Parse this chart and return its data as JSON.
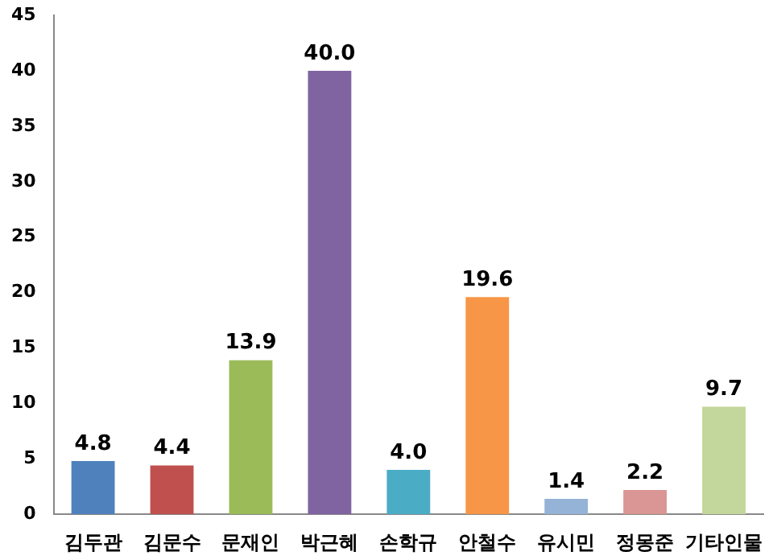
{
  "chart_data": {
    "type": "bar",
    "categories": [
      "김두관",
      "김문수",
      "문재인",
      "박근혜",
      "손학규",
      "안철수",
      "유시민",
      "정몽준",
      "기타인물"
    ],
    "values": [
      4.8,
      4.4,
      13.9,
      40.0,
      4.0,
      19.6,
      1.4,
      2.2,
      9.7
    ],
    "value_labels": [
      "4.8",
      "4.4",
      "13.9",
      "40.0",
      "4.0",
      "19.6",
      "1.4",
      "2.2",
      "9.7"
    ],
    "colors": [
      "#4f81bd",
      "#c0504d",
      "#9bbb59",
      "#8064a2",
      "#4bacc6",
      "#f79646",
      "#95b3d7",
      "#d99694",
      "#c3d69b"
    ],
    "ylim": [
      0,
      45
    ],
    "yticks": [
      0,
      5,
      10,
      15,
      20,
      25,
      30,
      35,
      40,
      45
    ],
    "grid": false,
    "legend": false
  }
}
